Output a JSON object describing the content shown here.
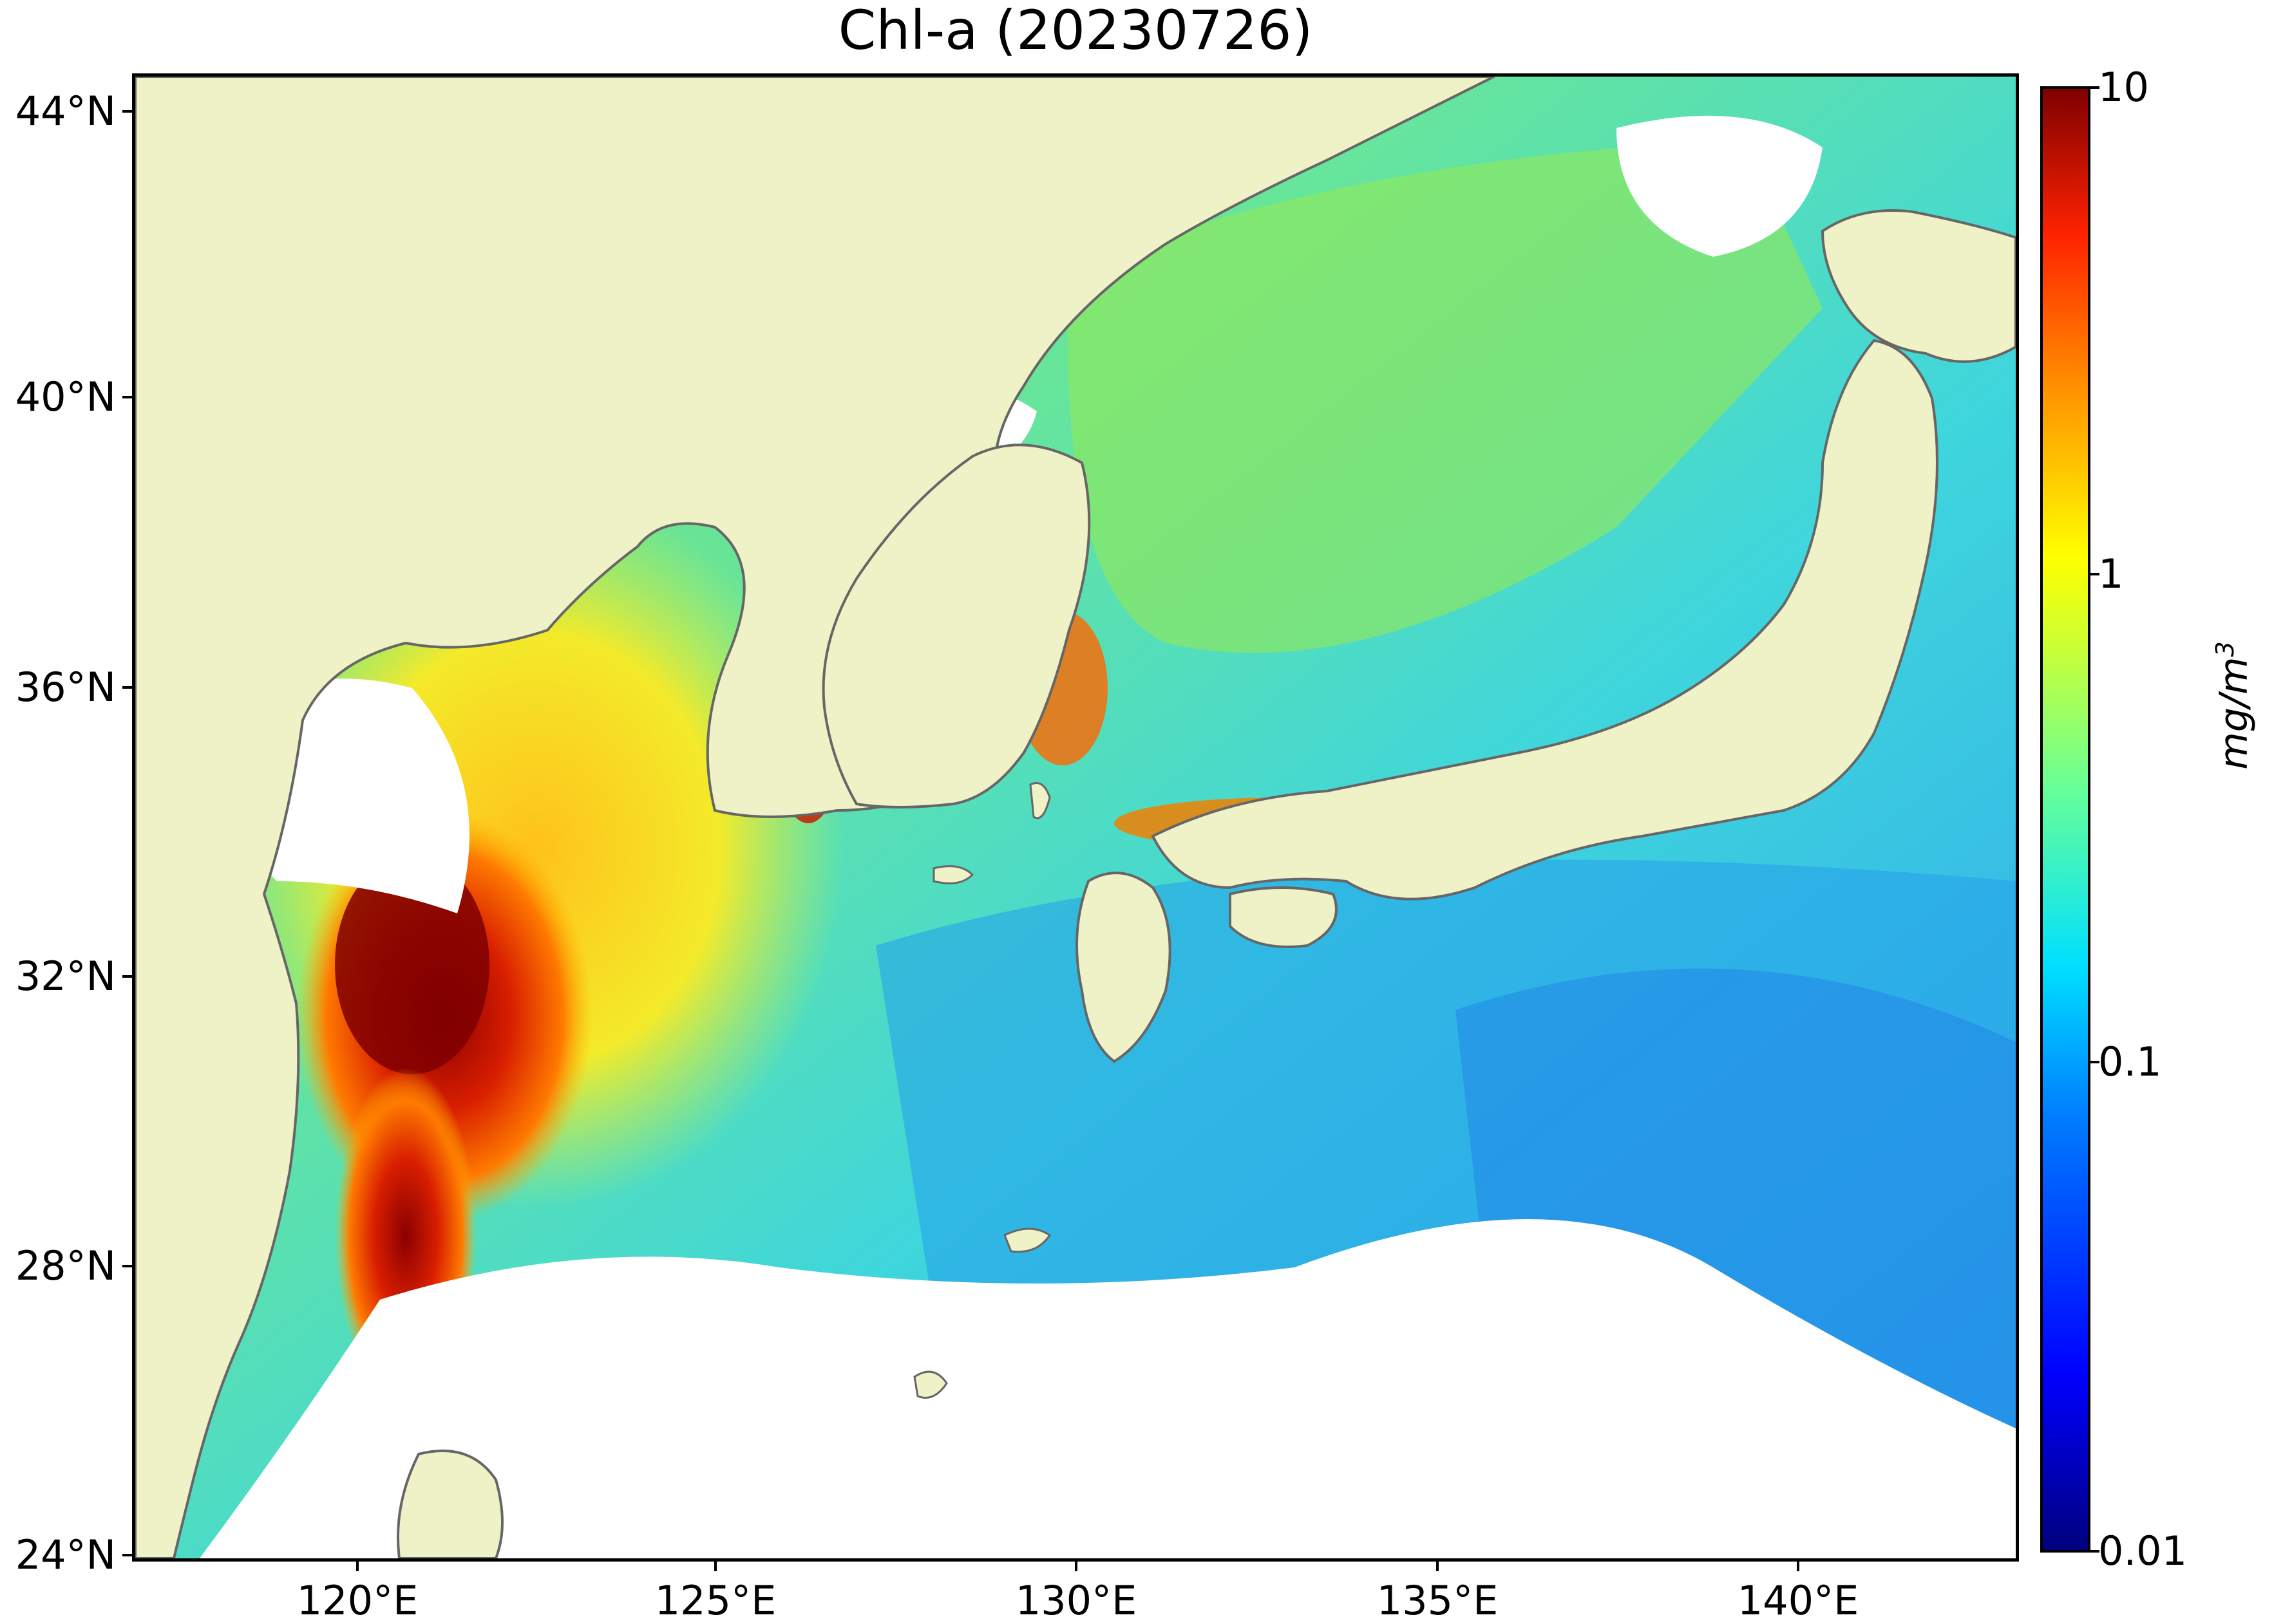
{
  "title": "Chl-a (20230726)",
  "map": {
    "lat_labels": [
      "44°N",
      "40°N",
      "36°N",
      "32°N",
      "28°N",
      "24°N"
    ],
    "lon_labels": [
      "120°E",
      "125°E",
      "130°E",
      "135°E",
      "140°E"
    ],
    "colors": {
      "land": "#eff2c7",
      "cloud_no_data": "#ffffff",
      "coastline": "#666666",
      "ocean_colormap": "jet"
    }
  },
  "colorbar": {
    "tick_labels": [
      "10",
      "1",
      "0.1",
      "0.01"
    ],
    "unit_base": "mg/m",
    "unit_exp": "3",
    "scale": "log",
    "range": [
      0.01,
      10
    ]
  }
}
